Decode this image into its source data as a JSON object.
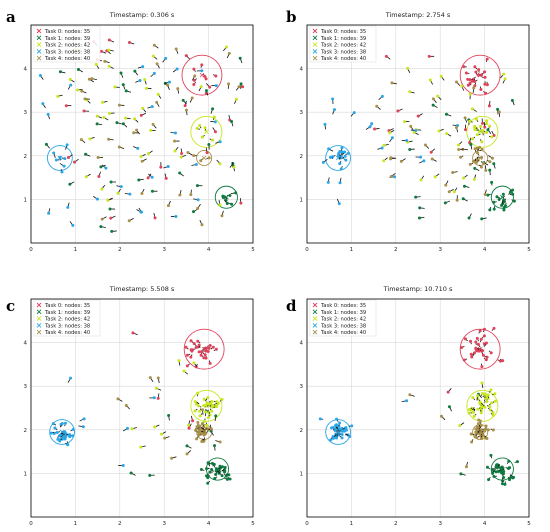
{
  "chart_data": [
    {
      "type": "scatter",
      "panel": "a",
      "title": "Timestamp: 0.306 s",
      "xlim": [
        0,
        5
      ],
      "ylim": [
        0,
        5
      ],
      "xticks": [
        0,
        1,
        2,
        3,
        4,
        5
      ],
      "yticks": [
        1,
        2,
        3,
        4
      ],
      "grid": true,
      "legend_position": "top-left",
      "legend": [
        "Task 0: nodes: 35",
        "Task 1: nodes: 39",
        "Task 2: nodes: 42",
        "Task 3: nodes: 38",
        "Task 4: nodes: 40"
      ],
      "targets": [
        {
          "task": 0,
          "x": 3.85,
          "y": 3.85,
          "r": 0.45
        },
        {
          "task": 1,
          "x": 4.4,
          "y": 1.05,
          "r": 0.25
        },
        {
          "task": 2,
          "x": 3.95,
          "y": 2.55,
          "r": 0.35
        },
        {
          "task": 3,
          "x": 0.65,
          "y": 1.95,
          "r": 0.28
        },
        {
          "task": 4,
          "x": 3.9,
          "y": 1.95,
          "r": 0.17
        }
      ],
      "clusters": [
        {
          "task": 0,
          "x": 3.9,
          "y": 3.85,
          "spread": 0.28,
          "count": 8
        },
        {
          "task": 1,
          "x": 4.4,
          "y": 1.05,
          "spread": 0.15,
          "count": 4
        },
        {
          "task": 2,
          "x": 3.95,
          "y": 2.55,
          "spread": 0.2,
          "count": 6
        },
        {
          "task": 3,
          "x": 0.65,
          "y": 1.95,
          "spread": 0.15,
          "count": 4
        },
        {
          "task": 4,
          "x": 3.9,
          "y": 1.95,
          "spread": 0.1,
          "count": 3
        }
      ],
      "scattered_fraction": 0.95
    },
    {
      "type": "scatter",
      "panel": "b",
      "title": "Timestamp: 2.754 s",
      "xlim": [
        0,
        5
      ],
      "ylim": [
        0,
        5
      ],
      "xticks": [
        0,
        1,
        2,
        3,
        4,
        5
      ],
      "yticks": [
        1,
        2,
        3,
        4
      ],
      "grid": true,
      "legend_position": "top-left",
      "legend": [
        "Task 0: nodes: 35",
        "Task 1: nodes: 39",
        "Task 2: nodes: 42",
        "Task 3: nodes: 38",
        "Task 4: nodes: 40"
      ],
      "targets": [
        {
          "task": 0,
          "x": 3.9,
          "y": 3.85,
          "r": 0.45
        },
        {
          "task": 1,
          "x": 4.4,
          "y": 1.05,
          "r": 0.25
        },
        {
          "task": 2,
          "x": 3.95,
          "y": 2.55,
          "r": 0.35
        },
        {
          "task": 3,
          "x": 0.7,
          "y": 1.95,
          "r": 0.28
        },
        {
          "task": 4,
          "x": 3.9,
          "y": 1.95,
          "r": 0.17
        }
      ],
      "clusters": [
        {
          "task": 0,
          "x": 3.9,
          "y": 3.85,
          "spread": 0.3,
          "count": 22
        },
        {
          "task": 1,
          "x": 4.45,
          "y": 1.05,
          "spread": 0.22,
          "count": 18
        },
        {
          "task": 2,
          "x": 3.95,
          "y": 2.55,
          "spread": 0.25,
          "count": 16
        },
        {
          "task": 3,
          "x": 0.75,
          "y": 1.95,
          "spread": 0.22,
          "count": 18
        },
        {
          "task": 4,
          "x": 3.85,
          "y": 1.95,
          "spread": 0.18,
          "count": 16
        }
      ],
      "scattered_fraction": 0.45
    },
    {
      "type": "scatter",
      "panel": "c",
      "title": "Timestamp: 5.508 s",
      "xlim": [
        0,
        5
      ],
      "ylim": [
        0,
        5
      ],
      "xticks": [
        0,
        1,
        2,
        3,
        4,
        5
      ],
      "yticks": [
        1,
        2,
        3,
        4
      ],
      "grid": true,
      "legend_position": "top-left",
      "legend": [
        "Task 0: nodes: 35",
        "Task 1: nodes: 39",
        "Task 2: nodes: 42",
        "Task 3: nodes: 38",
        "Task 4: nodes: 40"
      ],
      "targets": [
        {
          "task": 0,
          "x": 3.9,
          "y": 3.85,
          "r": 0.45
        },
        {
          "task": 1,
          "x": 4.2,
          "y": 1.1,
          "r": 0.25
        },
        {
          "task": 2,
          "x": 3.95,
          "y": 2.55,
          "r": 0.35
        },
        {
          "task": 3,
          "x": 0.7,
          "y": 1.95,
          "r": 0.28
        },
        {
          "task": 4,
          "x": 3.9,
          "y": 1.95,
          "r": 0.17
        }
      ],
      "clusters": [
        {
          "task": 0,
          "x": 3.85,
          "y": 3.85,
          "spread": 0.28,
          "count": 30
        },
        {
          "task": 1,
          "x": 4.2,
          "y": 1.05,
          "spread": 0.22,
          "count": 30
        },
        {
          "task": 2,
          "x": 3.95,
          "y": 2.55,
          "spread": 0.24,
          "count": 32
        },
        {
          "task": 3,
          "x": 0.7,
          "y": 1.95,
          "spread": 0.2,
          "count": 32
        },
        {
          "task": 4,
          "x": 3.9,
          "y": 1.95,
          "spread": 0.16,
          "count": 30
        }
      ],
      "scattered_fraction": 0.22
    },
    {
      "type": "scatter",
      "panel": "d",
      "title": "Timestamp: 10.710 s",
      "xlim": [
        0,
        5
      ],
      "ylim": [
        0,
        5
      ],
      "xticks": [
        0,
        1,
        2,
        3,
        4,
        5
      ],
      "yticks": [
        1,
        2,
        3,
        4
      ],
      "grid": true,
      "legend_position": "top-left",
      "legend": [
        "Task 0: nodes: 35",
        "Task 1: nodes: 39",
        "Task 2: nodes: 42",
        "Task 3: nodes: 38",
        "Task 4: nodes: 40"
      ],
      "targets": [
        {
          "task": 0,
          "x": 3.9,
          "y": 3.85,
          "r": 0.45
        },
        {
          "task": 1,
          "x": 4.4,
          "y": 1.1,
          "r": 0.25
        },
        {
          "task": 2,
          "x": 3.95,
          "y": 2.55,
          "r": 0.35
        },
        {
          "task": 3,
          "x": 0.7,
          "y": 1.95,
          "r": 0.28
        },
        {
          "task": 4,
          "x": 3.9,
          "y": 1.95,
          "r": 0.17
        }
      ],
      "clusters": [
        {
          "task": 0,
          "x": 3.9,
          "y": 3.85,
          "spread": 0.28,
          "count": 34
        },
        {
          "task": 1,
          "x": 4.4,
          "y": 1.1,
          "spread": 0.22,
          "count": 36
        },
        {
          "task": 2,
          "x": 3.95,
          "y": 2.55,
          "spread": 0.24,
          "count": 38
        },
        {
          "task": 3,
          "x": 0.7,
          "y": 1.95,
          "spread": 0.2,
          "count": 36
        },
        {
          "task": 4,
          "x": 3.9,
          "y": 1.95,
          "spread": 0.16,
          "count": 36
        }
      ],
      "scattered_fraction": 0.1
    }
  ],
  "colors": {
    "task0": "#e0425a",
    "task1": "#0d7a3e",
    "task2": "#c6e61e",
    "task3": "#2aa5e6",
    "task4": "#a8904a",
    "grid": "#d9d9d9",
    "heading": "#111111"
  }
}
